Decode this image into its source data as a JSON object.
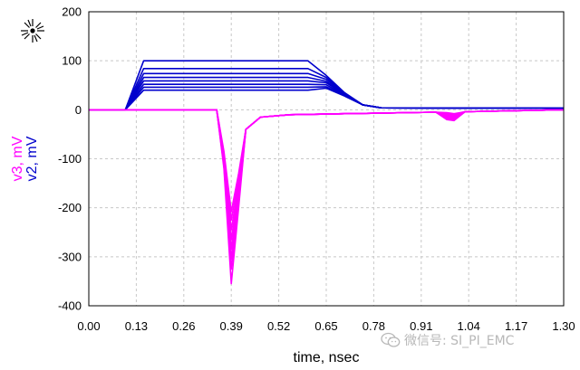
{
  "brand_icon": "keysight-starburst-logo-icon",
  "watermark": {
    "text": "微信号: SI_PI_EMC",
    "icon": "wechat-icon"
  },
  "chart_data": {
    "type": "line",
    "xlabel": "time, nsec",
    "ylabels": [
      {
        "text": "v3, mV",
        "color": "#ff00ff"
      },
      {
        "text": "v2, mV",
        "color": "#0000cc"
      }
    ],
    "xlim": [
      0,
      1.3
    ],
    "ylim": [
      -400,
      200
    ],
    "xticks": [
      "0.00",
      "0.13",
      "0.26",
      "0.39",
      "0.52",
      "0.65",
      "0.78",
      "0.91",
      "1.04",
      "1.17",
      "1.30"
    ],
    "yticks": [
      "200",
      "100",
      "0",
      "-100",
      "-200",
      "-300",
      "-400"
    ],
    "grid": true,
    "colors": {
      "v2": "#0000cc",
      "v3": "#ff00ff"
    },
    "series": [
      {
        "group": "v2",
        "plateau": 100,
        "x": [
          0,
          0.1,
          0.15,
          0.6,
          0.65,
          0.7,
          0.75,
          0.8,
          1.3
        ],
        "y": [
          0,
          0,
          100,
          100,
          70,
          35,
          10,
          4,
          3
        ]
      },
      {
        "group": "v2",
        "plateau": 84,
        "x": [
          0,
          0.1,
          0.15,
          0.6,
          0.65,
          0.7,
          0.75,
          0.8,
          1.3
        ],
        "y": [
          0,
          0,
          84,
          84,
          66,
          34,
          10,
          4,
          3
        ]
      },
      {
        "group": "v2",
        "plateau": 74,
        "x": [
          0,
          0.1,
          0.15,
          0.6,
          0.65,
          0.7,
          0.75,
          0.8,
          1.3
        ],
        "y": [
          0,
          0,
          74,
          74,
          62,
          33,
          10,
          4,
          3
        ]
      },
      {
        "group": "v2",
        "plateau": 66,
        "x": [
          0,
          0.1,
          0.15,
          0.6,
          0.65,
          0.7,
          0.75,
          0.8,
          1.3
        ],
        "y": [
          0,
          0,
          66,
          66,
          58,
          32,
          10,
          4,
          3
        ]
      },
      {
        "group": "v2",
        "plateau": 59,
        "x": [
          0,
          0.1,
          0.15,
          0.6,
          0.65,
          0.7,
          0.75,
          0.8,
          1.3
        ],
        "y": [
          0,
          0,
          59,
          59,
          55,
          31,
          10,
          4,
          3
        ]
      },
      {
        "group": "v2",
        "plateau": 52,
        "x": [
          0,
          0.1,
          0.15,
          0.6,
          0.65,
          0.7,
          0.75,
          0.8,
          1.3
        ],
        "y": [
          0,
          0,
          52,
          52,
          51,
          30,
          10,
          4,
          3
        ]
      },
      {
        "group": "v2",
        "plateau": 46,
        "x": [
          0,
          0.1,
          0.15,
          0.6,
          0.65,
          0.7,
          0.75,
          0.8,
          1.3
        ],
        "y": [
          0,
          0,
          46,
          46,
          47,
          29,
          10,
          4,
          3
        ]
      },
      {
        "group": "v2",
        "plateau": 40,
        "x": [
          0,
          0.1,
          0.15,
          0.6,
          0.65,
          0.7,
          0.75,
          0.8,
          1.3
        ],
        "y": [
          0,
          0,
          40,
          40,
          44,
          28,
          10,
          4,
          3
        ]
      },
      {
        "group": "v3",
        "peak": -355,
        "x": [
          0,
          0.35,
          0.37,
          0.39,
          0.41,
          0.43,
          0.47,
          0.55,
          0.7,
          0.95,
          0.98,
          1.0,
          1.03,
          1.3
        ],
        "y": [
          0,
          0,
          -120,
          -355,
          -200,
          -40,
          -15,
          -10,
          -8,
          -5,
          -20,
          -22,
          -4,
          0
        ]
      },
      {
        "group": "v3",
        "peak": -325,
        "x": [
          0,
          0.35,
          0.37,
          0.39,
          0.41,
          0.43,
          0.47,
          0.55,
          0.7,
          0.95,
          0.98,
          1.0,
          1.03,
          1.3
        ],
        "y": [
          0,
          0,
          -115,
          -325,
          -190,
          -40,
          -15,
          -10,
          -8,
          -5,
          -18,
          -20,
          -4,
          0
        ]
      },
      {
        "group": "v3",
        "peak": -305,
        "x": [
          0,
          0.35,
          0.37,
          0.39,
          0.41,
          0.43,
          0.47,
          0.55,
          0.7,
          0.95,
          0.98,
          1.0,
          1.03,
          1.3
        ],
        "y": [
          0,
          0,
          -110,
          -305,
          -180,
          -40,
          -15,
          -10,
          -8,
          -5,
          -16,
          -18,
          -4,
          0
        ]
      },
      {
        "group": "v3",
        "peak": -285,
        "x": [
          0,
          0.35,
          0.37,
          0.39,
          0.41,
          0.43,
          0.47,
          0.55,
          0.7,
          0.95,
          0.98,
          1.0,
          1.03,
          1.3
        ],
        "y": [
          0,
          0,
          -105,
          -285,
          -170,
          -40,
          -15,
          -10,
          -8,
          -5,
          -14,
          -16,
          -4,
          0
        ]
      },
      {
        "group": "v3",
        "peak": -265,
        "x": [
          0,
          0.35,
          0.37,
          0.39,
          0.41,
          0.43,
          0.47,
          0.55,
          0.7,
          0.95,
          0.98,
          1.0,
          1.03,
          1.3
        ],
        "y": [
          0,
          0,
          -100,
          -265,
          -160,
          -40,
          -15,
          -10,
          -8,
          -5,
          -12,
          -14,
          -4,
          0
        ]
      },
      {
        "group": "v3",
        "peak": -245,
        "x": [
          0,
          0.35,
          0.37,
          0.39,
          0.41,
          0.43,
          0.47,
          0.55,
          0.7,
          0.95,
          0.98,
          1.0,
          1.03,
          1.3
        ],
        "y": [
          0,
          0,
          -95,
          -245,
          -150,
          -40,
          -15,
          -10,
          -8,
          -5,
          -10,
          -12,
          -4,
          0
        ]
      },
      {
        "group": "v3",
        "peak": -225,
        "x": [
          0,
          0.35,
          0.37,
          0.39,
          0.41,
          0.43,
          0.47,
          0.55,
          0.7,
          0.95,
          0.98,
          1.0,
          1.03,
          1.3
        ],
        "y": [
          0,
          0,
          -90,
          -225,
          -140,
          -40,
          -15,
          -10,
          -8,
          -5,
          -8,
          -10,
          -4,
          0
        ]
      },
      {
        "group": "v3",
        "peak": -208,
        "x": [
          0,
          0.35,
          0.37,
          0.39,
          0.41,
          0.43,
          0.47,
          0.55,
          0.7,
          0.95,
          0.98,
          1.0,
          1.03,
          1.3
        ],
        "y": [
          0,
          0,
          -85,
          -208,
          -130,
          -40,
          -15,
          -10,
          -8,
          -5,
          -6,
          -8,
          -4,
          0
        ]
      }
    ]
  }
}
